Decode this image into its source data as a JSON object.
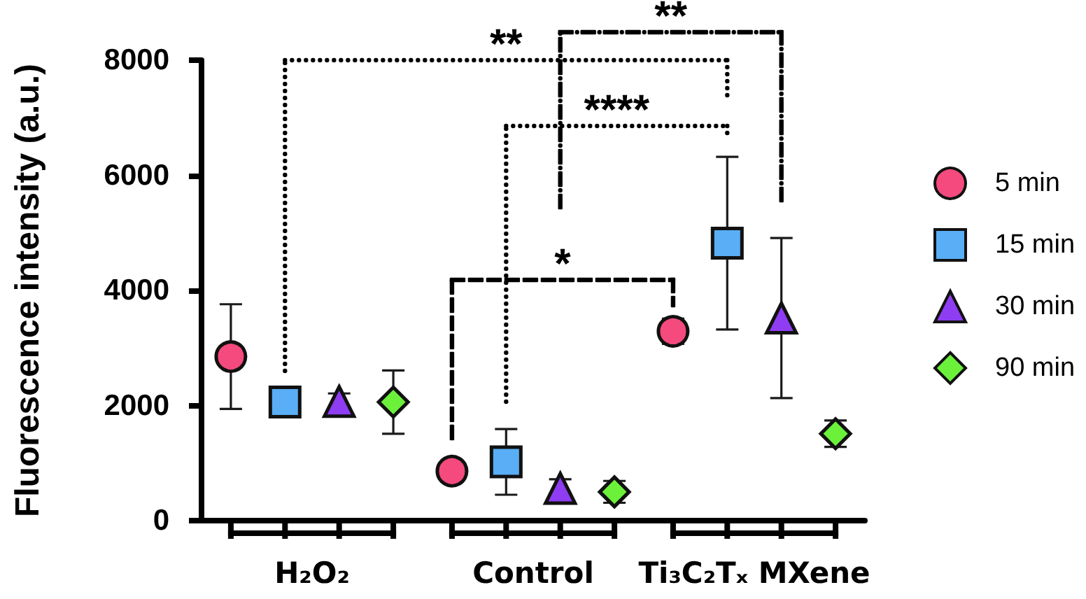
{
  "chart_data": {
    "type": "scatter",
    "ylabel": "Fluorescence intensity (a.u.)",
    "categories": [
      "H₂O₂",
      "Control",
      "Ti₃C₂Tₓ MXene"
    ],
    "series": [
      {
        "name": "5 min",
        "color": "#f44a7d",
        "marker": "circle",
        "values": [
          2850,
          860,
          3290
        ],
        "errors": [
          910,
          null,
          220
        ]
      },
      {
        "name": "15 min",
        "color": "#59aef5",
        "marker": "square",
        "values": [
          2060,
          1020,
          4820
        ],
        "errors": [
          null,
          570,
          1500
        ]
      },
      {
        "name": "30 min",
        "color": "#8f3df2",
        "marker": "triangle",
        "values": [
          2070,
          560,
          3520
        ],
        "errors": [
          140,
          160,
          1390
        ]
      },
      {
        "name": "90 min",
        "color": "#6cf13b",
        "marker": "diamond",
        "values": [
          2060,
          500,
          1510
        ],
        "errors": [
          550,
          190,
          230
        ]
      }
    ],
    "ylim": [
      0,
      8000
    ],
    "yticks": [
      0,
      2000,
      4000,
      6000,
      8000
    ],
    "legend": "right",
    "annotations": [
      "**",
      "**",
      "****",
      "*"
    ]
  }
}
